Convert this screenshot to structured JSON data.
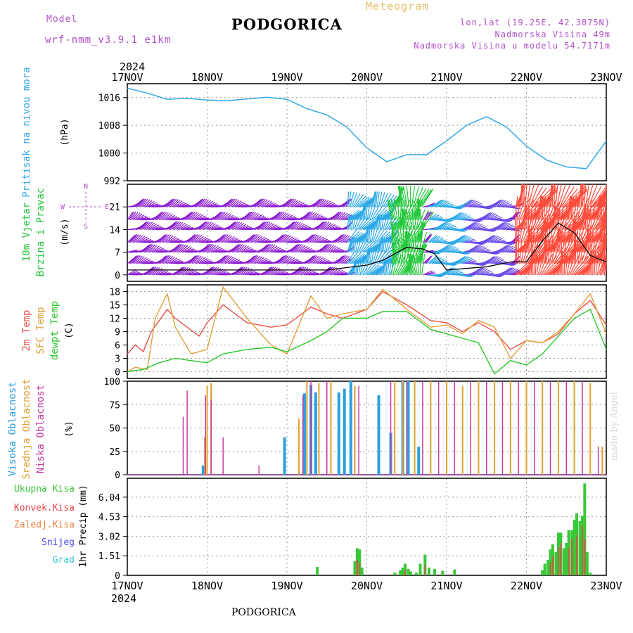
{
  "header": {
    "model_label": "Model",
    "model_value": "wrf-nmm_v3.9.1  e1km",
    "title": "PODGORICA",
    "subtitle": "Meteogram",
    "coords": "lon,lat (19.25E, 42.3875N)",
    "elevation": "Nadmorska Visina 49m",
    "elevation_model": "Nadmorska Visina u modelu 54.7171m",
    "year": "2024"
  },
  "footer": {
    "title": "PODGORICA",
    "year": "2024",
    "watermark": "made by Angel"
  },
  "colors": {
    "pressure": "#33a8e8",
    "wind_low": "#8a1ad0",
    "wind_mid": "#2aa8e8",
    "wind_strong": "#22c83a",
    "wind_gust": "#ff4a3a",
    "temp_2m": "#e8504a",
    "temp_sfc": "#e0a03a",
    "dewpt": "#2ac82a",
    "cloud_high": "#2aa0e0",
    "cloud_mid": "#e0a030",
    "cloud_low": "#c83aa0",
    "precip_total": "#3ac83a",
    "precip_conv": "#e84848",
    "precip_frozen": "#e88040",
    "snow": "#4a4ae8",
    "hail": "#3ac8c8"
  },
  "chart_data": [
    {
      "type": "line",
      "name_panel": "pressure",
      "ylabel_1": "Pritisak  na  nivou  mora",
      "ylabel_2": "(hPa)",
      "x_ticks": [
        "17NOV",
        "18NOV",
        "19NOV",
        "20NOV",
        "21NOV",
        "22NOV",
        "23NOV"
      ],
      "ylim": [
        992,
        1020
      ],
      "yticks": [
        992,
        1000,
        1008,
        1016
      ],
      "x": [
        0,
        0.25,
        0.5,
        0.75,
        1.0,
        1.25,
        1.5,
        1.75,
        2.0,
        2.25,
        2.5,
        2.75,
        3.0,
        3.25,
        3.5,
        3.75,
        4.0,
        4.25,
        4.5,
        4.75,
        5.0,
        5.25,
        5.5,
        5.75,
        6.0
      ],
      "y": [
        1018.7,
        1017.3,
        1015.5,
        1015.8,
        1015.3,
        1015.1,
        1015.6,
        1016.1,
        1015.5,
        1012.8,
        1011.0,
        1007.5,
        1001.5,
        997.5,
        999.5,
        999.5,
        1003.5,
        1008.0,
        1010.5,
        1007.5,
        1002.0,
        998.0,
        996.0,
        995.5,
        1003.5
      ]
    },
    {
      "type": "scatter",
      "name_panel": "wind",
      "ylabel_1": "10m  Vjetar",
      "ylabel_2": "Brzina  i  Pravac",
      "ylabel_3": "(m/s)",
      "compass": [
        "N",
        "E",
        "S",
        "W"
      ],
      "ylim": [
        -2,
        28
      ],
      "yticks": [
        0,
        7,
        14,
        21
      ],
      "mean_speed_x": [
        0,
        1,
        2,
        2.5,
        3.0,
        3.2,
        3.5,
        3.7,
        3.85,
        4.0,
        4.5,
        4.8,
        5.0,
        5.2,
        5.4,
        5.6,
        5.8,
        6.0
      ],
      "mean_speed_y": [
        1.5,
        1.5,
        1.5,
        1.5,
        3.0,
        4.5,
        8.5,
        8.0,
        6.5,
        1.5,
        2.5,
        4.0,
        4.0,
        10.5,
        16.0,
        13.0,
        6.0,
        4.0
      ]
    },
    {
      "type": "line",
      "name_panel": "temperature",
      "ylabel_1": "2m  Temp",
      "ylabel_2": "SFC  Temp",
      "ylabel_3": "dewpt  Temp",
      "ylabel_4": "(C)",
      "ylim": [
        -1.5,
        19.5
      ],
      "yticks": [
        0,
        3,
        6,
        9,
        12,
        15,
        18
      ],
      "series": [
        {
          "name": "2m Temp",
          "x": [
            0,
            0.1,
            0.2,
            0.3,
            0.5,
            0.6,
            0.9,
            1.0,
            1.2,
            1.5,
            1.8,
            2.0,
            2.3,
            2.5,
            2.7,
            3.0,
            3.2,
            3.5,
            3.8,
            4.0,
            4.2,
            4.4,
            4.6,
            4.8,
            5.0,
            5.2,
            5.4,
            5.6,
            5.8,
            6.0
          ],
          "y": [
            4,
            6,
            4.5,
            9,
            14,
            12,
            8,
            11,
            15,
            11,
            10,
            10.5,
            14.5,
            13,
            12,
            14,
            18,
            15,
            11.5,
            11,
            9,
            11,
            9,
            5,
            7,
            6.5,
            8.5,
            13,
            16,
            10.5
          ]
        },
        {
          "name": "SFC Temp",
          "x": [
            0,
            0.1,
            0.25,
            0.35,
            0.5,
            0.6,
            0.8,
            1.0,
            1.2,
            1.5,
            1.8,
            2.0,
            2.3,
            2.5,
            2.7,
            3.0,
            3.2,
            3.5,
            3.8,
            4.0,
            4.2,
            4.4,
            4.6,
            4.8,
            5.0,
            5.2,
            5.4,
            5.6,
            5.8,
            6.0
          ],
          "y": [
            0,
            1,
            0.5,
            12,
            17.5,
            10,
            4,
            5,
            19,
            12,
            6,
            4,
            17,
            12,
            13,
            14,
            18.5,
            14,
            10,
            10.5,
            8.5,
            11.5,
            10,
            3,
            7,
            6.5,
            9,
            13,
            17.5,
            8.5
          ]
        },
        {
          "name": "dewpt Temp",
          "x": [
            0,
            0.2,
            0.4,
            0.6,
            0.8,
            1.0,
            1.2,
            1.5,
            1.8,
            2.0,
            2.3,
            2.5,
            2.7,
            3.0,
            3.2,
            3.5,
            3.8,
            4.0,
            4.2,
            4.4,
            4.6,
            4.8,
            5.0,
            5.2,
            5.4,
            5.6,
            5.8,
            6.0
          ],
          "y": [
            0,
            0.5,
            2,
            3,
            2.5,
            2,
            4,
            5,
            5.5,
            4.5,
            7,
            9,
            12,
            12,
            13.5,
            13.5,
            9.5,
            8.5,
            7.5,
            6.5,
            -0.5,
            2.5,
            1.5,
            4,
            8,
            12,
            14,
            5
          ]
        }
      ]
    },
    {
      "type": "bar",
      "name_panel": "clouds",
      "ylabel_1": "Visoka  Oblacnost",
      "ylabel_2": "Srednja  Oblacnost",
      "ylabel_3": "Niska  Oblacnost",
      "ylabel_4": "(%)",
      "ylim": [
        0,
        100
      ],
      "yticks": [
        0,
        25,
        50,
        75,
        100
      ],
      "series": [
        {
          "name": "Visoka Oblacnost",
          "x": [
            0.95,
            1.97,
            2.22,
            2.3,
            2.36,
            2.65,
            2.72,
            2.8,
            3.15,
            3.3,
            3.45,
            3.52,
            3.65
          ],
          "values": [
            10,
            40,
            87,
            96,
            88,
            88,
            92,
            100,
            85,
            45,
            100,
            100,
            30
          ]
        },
        {
          "name": "Srednja Oblacnost",
          "x": [
            0.97,
            1.0,
            1.05,
            2.15,
            2.25,
            2.4,
            2.55,
            2.85,
            3.35,
            3.45,
            3.6,
            3.8,
            4.0,
            4.2,
            4.4,
            4.6,
            4.8,
            5.0,
            5.2,
            5.4,
            5.6,
            5.8,
            5.95
          ],
          "values": [
            40,
            95,
            98,
            60,
            100,
            98,
            100,
            95,
            100,
            100,
            100,
            100,
            100,
            95,
            100,
            100,
            100,
            100,
            100,
            100,
            100,
            98,
            30
          ]
        },
        {
          "name": "Niska Oblacnost",
          "x": [
            0.7,
            0.75,
            0.98,
            1.05,
            1.2,
            1.65,
            2.2,
            2.3,
            2.5,
            2.9,
            3.3,
            3.5,
            3.7,
            3.9,
            4.1,
            4.3,
            4.5,
            4.7,
            4.9,
            5.1,
            5.3,
            5.5,
            5.7,
            5.9
          ],
          "values": [
            62,
            90,
            85,
            80,
            40,
            10,
            85,
            100,
            100,
            95,
            100,
            100,
            100,
            100,
            100,
            100,
            100,
            100,
            100,
            100,
            100,
            100,
            100,
            30
          ]
        }
      ]
    },
    {
      "type": "bar",
      "name_panel": "precip",
      "ylabel_1": "1hr  Precip  (mm)",
      "legend": [
        "Ukupna  Kisa",
        "Konvek.Kisa",
        "Zaledj.Kisa",
        "Snijeg",
        "Grad"
      ],
      "ylim": [
        0,
        7.5
      ],
      "yticks": [
        0,
        1.51,
        3.02,
        4.53,
        6.04
      ],
      "x_ticks": [
        "17NOV",
        "18NOV",
        "19NOV",
        "20NOV",
        "21NOV",
        "22NOV",
        "23NOV"
      ],
      "series": [
        {
          "name": "Ukupna Kisa",
          "x": [
            2.38,
            2.85,
            2.88,
            2.91,
            2.94,
            3.35,
            3.42,
            3.45,
            3.48,
            3.52,
            3.55,
            3.62,
            3.67,
            3.73,
            3.78,
            3.85,
            3.95,
            4.1,
            5.2,
            5.23,
            5.27,
            5.3,
            5.33,
            5.37,
            5.4,
            5.43,
            5.47,
            5.5,
            5.53,
            5.57,
            5.6,
            5.63,
            5.67,
            5.7,
            5.73,
            5.76,
            5.8
          ],
          "values": [
            0.65,
            1.1,
            2.1,
            2.0,
            0.6,
            0.2,
            0.4,
            0.6,
            0.9,
            0.5,
            0.3,
            0.2,
            0.9,
            1.6,
            0.6,
            0.5,
            0.35,
            0.45,
            0.4,
            0.9,
            1.2,
            2.0,
            2.4,
            1.8,
            3.3,
            3.3,
            2.1,
            2.5,
            3.5,
            3.5,
            4.3,
            4.8,
            4.2,
            4.6,
            7.1,
            1.8,
            0.2
          ]
        },
        {
          "name": "Konvek.Kisa",
          "x": [
            2.88,
            2.91,
            3.48,
            3.73,
            5.3,
            5.33,
            5.4,
            5.43,
            5.53,
            5.57,
            5.63,
            5.7,
            5.73
          ],
          "values": [
            1.2,
            1.0,
            0.4,
            0.8,
            1.0,
            1.5,
            2.2,
            2.5,
            2.1,
            2.8,
            3.1,
            3.8,
            2.8
          ]
        }
      ]
    }
  ]
}
